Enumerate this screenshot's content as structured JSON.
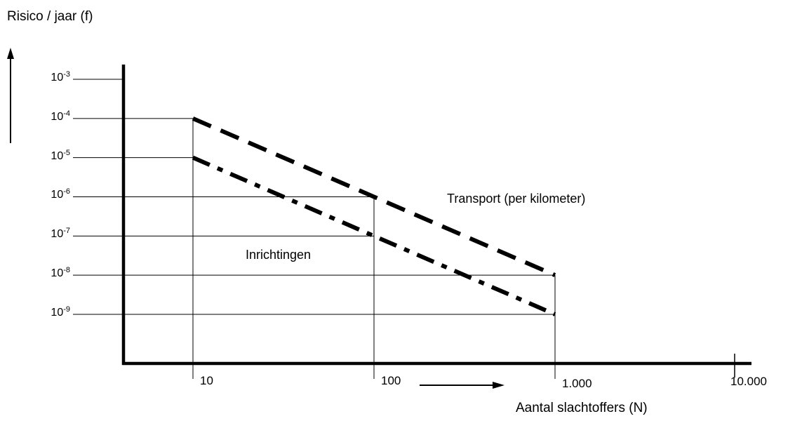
{
  "chart_data": {
    "type": "line",
    "ylabel": "Risico / jaar (f)",
    "xlabel": "Aantal slachtoffers (N)",
    "x_scale": "log",
    "y_scale": "log",
    "xlim": [
      10,
      10000
    ],
    "ylim": [
      1e-09,
      0.001
    ],
    "x_ticks": [
      {
        "value": 10,
        "label": "10"
      },
      {
        "value": 100,
        "label": "100"
      },
      {
        "value": 1000,
        "label": "1.000"
      },
      {
        "value": 10000,
        "label": "10.000"
      }
    ],
    "y_ticks": [
      {
        "value": 0.001,
        "base": "10",
        "exp": "-3"
      },
      {
        "value": 0.0001,
        "base": "10",
        "exp": "-4"
      },
      {
        "value": 1e-05,
        "base": "10",
        "exp": "-5"
      },
      {
        "value": 1e-06,
        "base": "10",
        "exp": "-6"
      },
      {
        "value": 1e-07,
        "base": "10",
        "exp": "-7"
      },
      {
        "value": 1e-08,
        "base": "10",
        "exp": "-8"
      },
      {
        "value": 1e-09,
        "base": "10",
        "exp": "-9"
      }
    ],
    "series": [
      {
        "name": "Transport (per kilometer)",
        "style": "dashed",
        "x": [
          10,
          100,
          1000
        ],
        "y": [
          0.0001,
          1e-06,
          1e-08
        ]
      },
      {
        "name": "Inrichtingen",
        "style": "dash-dot",
        "x": [
          10,
          100,
          1000
        ],
        "y": [
          1e-05,
          1e-07,
          1e-09
        ]
      }
    ],
    "grid": false,
    "colors": {
      "line": "#000000",
      "background": "#ffffff"
    }
  }
}
